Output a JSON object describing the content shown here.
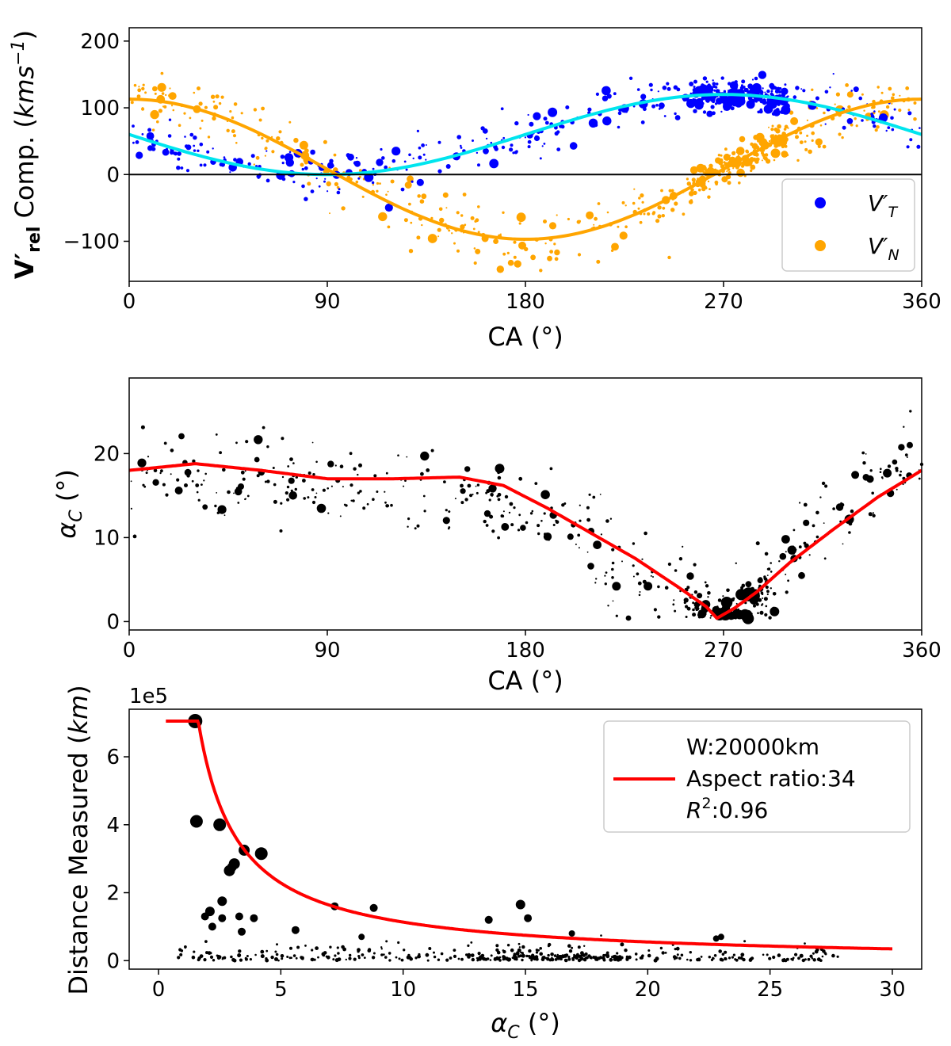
{
  "chart_data": [
    {
      "type": "scatter",
      "panel": "top",
      "title": "",
      "xlabel": "CA (°)",
      "ylabel": "V'rel Comp. (kms⁻¹)",
      "ylabel_bold": "V′",
      "ylabel_sub": "rel",
      "ylabel_rest": " Comp. (",
      "ylabel_unit": "kms",
      "ylabel_exp": "−1",
      "ylabel_close": ")",
      "xlim": [
        0,
        360
      ],
      "ylim": [
        -160,
        220
      ],
      "xticks": [
        0,
        90,
        180,
        270,
        360
      ],
      "yticks": [
        -100,
        0,
        100,
        200
      ],
      "ytick_labels": [
        "−100",
        "0",
        "100",
        "200"
      ],
      "hline": 0,
      "series": [
        {
          "name": "V'T",
          "label_main": "V′",
          "label_sub": "T",
          "color": "#0000ff",
          "scatter_trend": {
            "mean": 60,
            "amp": 60,
            "phase_deg": 270,
            "noise": 18
          }
        },
        {
          "name": "V'N",
          "label_main": "V′",
          "label_sub": "N",
          "color": "#ffa500",
          "scatter_trend": {
            "mean": 8,
            "amp": 105,
            "phase_deg": 0,
            "noise": 22
          }
        }
      ],
      "fit_lines": [
        {
          "name": "V'T fit",
          "color": "#00e5ee",
          "mean": 60,
          "amp": 60,
          "phase_deg": 270
        },
        {
          "name": "V'N fit",
          "color": "#ffa500",
          "mean": 8,
          "amp": 105,
          "phase_deg": 0
        }
      ],
      "legend_placement": "lower-right"
    },
    {
      "type": "scatter",
      "panel": "middle",
      "title": "",
      "xlabel": "CA (°)",
      "ylabel_main": "α",
      "ylabel_sub": "C",
      "ylabel_rest": " (°)",
      "xlim": [
        0,
        360
      ],
      "ylim": [
        -1,
        29
      ],
      "xticks": [
        0,
        90,
        180,
        270,
        360
      ],
      "yticks": [
        0,
        10,
        20
      ],
      "fit_line": {
        "color": "#ff0000",
        "x": [
          0,
          30,
          60,
          90,
          120,
          150,
          170,
          190,
          210,
          230,
          250,
          262,
          267,
          275,
          285,
          300,
          320,
          340,
          360
        ],
        "y": [
          18.0,
          18.8,
          18.0,
          17.0,
          17.0,
          17.2,
          16.2,
          13.5,
          10.5,
          7.5,
          4.0,
          1.8,
          0.4,
          1.6,
          3.5,
          7.0,
          11.0,
          14.8,
          18.0
        ]
      },
      "points_color": "#000000"
    },
    {
      "type": "scatter",
      "panel": "bottom",
      "title": "",
      "xlabel_main": "α",
      "xlabel_sub": "C",
      "xlabel_rest": " (°)",
      "ylabel": "Distance Measured (km)",
      "ylabel_text": "Distance Measured (",
      "ylabel_unit": "km",
      "ylabel_close": ")",
      "offset_text": "1e5",
      "xlim": [
        -1.2,
        31.2
      ],
      "ylim": [
        -0.25,
        7.4
      ],
      "xticks": [
        0,
        5,
        10,
        15,
        20,
        25,
        30
      ],
      "yticks": [
        0,
        2,
        4,
        6
      ],
      "fit_line": {
        "color": "#ff0000",
        "width_km": 20000,
        "aspect_ratio": 34,
        "cap_value": 7.05,
        "x_start": 0.3,
        "x_end": 30
      },
      "large_points": [
        {
          "x": 1.5,
          "y": 7.05,
          "s": 9
        },
        {
          "x": 1.55,
          "y": 4.1,
          "s": 8
        },
        {
          "x": 2.5,
          "y": 4.0,
          "s": 8
        },
        {
          "x": 3.5,
          "y": 3.25,
          "s": 7
        },
        {
          "x": 4.2,
          "y": 3.15,
          "s": 8
        },
        {
          "x": 2.9,
          "y": 2.65,
          "s": 7
        },
        {
          "x": 3.1,
          "y": 2.85,
          "s": 7
        },
        {
          "x": 3.0,
          "y": 2.75,
          "s": 6
        },
        {
          "x": 2.6,
          "y": 1.75,
          "s": 6
        },
        {
          "x": 2.1,
          "y": 1.45,
          "s": 6
        },
        {
          "x": 2.6,
          "y": 1.25,
          "s": 5
        },
        {
          "x": 3.3,
          "y": 1.3,
          "s": 5
        },
        {
          "x": 3.9,
          "y": 1.25,
          "s": 5
        },
        {
          "x": 2.2,
          "y": 1.0,
          "s": 5
        },
        {
          "x": 3.4,
          "y": 0.85,
          "s": 5
        },
        {
          "x": 1.9,
          "y": 1.3,
          "s": 5
        },
        {
          "x": 7.2,
          "y": 1.6,
          "s": 5
        },
        {
          "x": 8.8,
          "y": 1.55,
          "s": 5
        },
        {
          "x": 14.8,
          "y": 1.65,
          "s": 6
        },
        {
          "x": 15.1,
          "y": 1.25,
          "s": 5
        },
        {
          "x": 13.5,
          "y": 1.2,
          "s": 5
        },
        {
          "x": 5.6,
          "y": 0.9,
          "s": 5
        },
        {
          "x": 8.3,
          "y": 0.7,
          "s": 4
        },
        {
          "x": 16.9,
          "y": 0.8,
          "s": 4
        },
        {
          "x": 23.0,
          "y": 0.7,
          "s": 4
        },
        {
          "x": 22.8,
          "y": 0.65,
          "s": 4
        }
      ],
      "legend": {
        "placement": "upper-right",
        "lines": [
          "W:20000km",
          "Aspect ratio:34"
        ],
        "r2_main": "R",
        "r2_exp": "2",
        "r2_value": ":0.96"
      }
    }
  ]
}
